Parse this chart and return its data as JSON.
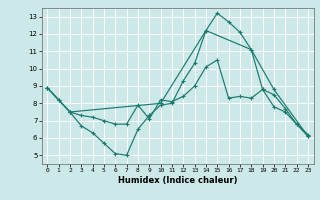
{
  "title": "",
  "xlabel": "Humidex (Indice chaleur)",
  "bg_color": "#cce8e8",
  "grid_color": "#ffffff",
  "line_color": "#1a7a6e",
  "xlim": [
    -0.5,
    23.5
  ],
  "ylim": [
    4.5,
    13.5
  ],
  "xticks": [
    0,
    1,
    2,
    3,
    4,
    5,
    6,
    7,
    8,
    9,
    10,
    11,
    12,
    13,
    14,
    15,
    16,
    17,
    18,
    19,
    20,
    21,
    22,
    23
  ],
  "yticks": [
    5,
    6,
    7,
    8,
    9,
    10,
    11,
    12,
    13
  ],
  "line1_x": [
    0,
    1,
    2,
    3,
    4,
    5,
    6,
    7,
    8,
    9,
    10,
    11,
    12,
    13,
    14,
    15,
    16,
    17,
    18,
    19,
    20,
    21,
    22,
    23
  ],
  "line1_y": [
    8.9,
    8.2,
    7.5,
    6.7,
    6.3,
    5.7,
    5.1,
    5.0,
    6.5,
    7.3,
    7.9,
    8.0,
    9.3,
    10.3,
    12.2,
    13.2,
    12.7,
    12.1,
    11.1,
    8.8,
    7.8,
    7.5,
    6.8,
    6.1
  ],
  "line2_x": [
    0,
    1,
    2,
    3,
    4,
    5,
    6,
    7,
    8,
    9,
    10,
    11,
    12,
    13,
    14,
    15,
    16,
    17,
    18,
    19,
    20,
    21,
    22,
    23
  ],
  "line2_y": [
    8.9,
    8.2,
    7.5,
    7.3,
    7.2,
    7.0,
    6.8,
    6.8,
    7.9,
    7.1,
    8.2,
    8.1,
    8.4,
    9.0,
    10.1,
    10.5,
    8.3,
    8.4,
    8.3,
    8.8,
    8.5,
    7.7,
    6.8,
    6.2
  ],
  "line3_x": [
    0,
    2,
    10,
    14,
    18,
    20,
    23
  ],
  "line3_y": [
    8.9,
    7.5,
    8.0,
    12.2,
    11.1,
    8.8,
    6.1
  ]
}
